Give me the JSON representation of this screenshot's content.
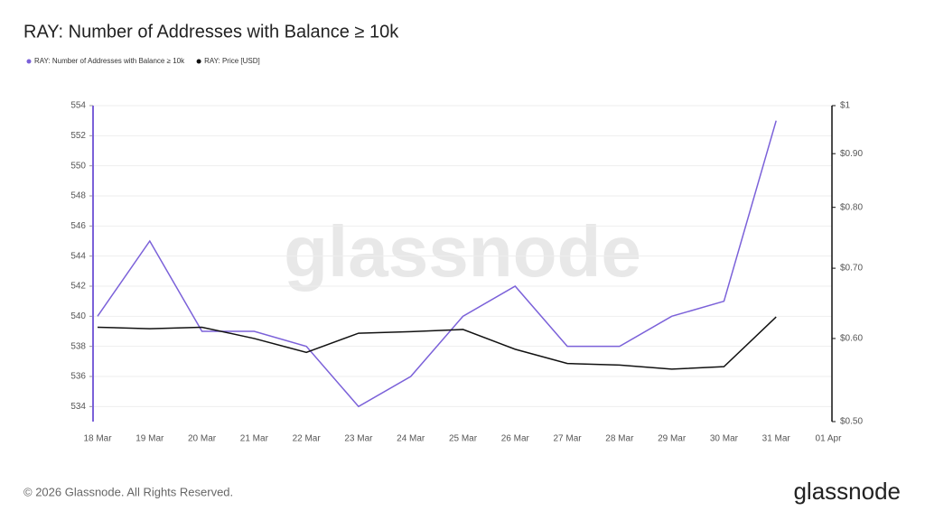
{
  "chart_data": {
    "type": "line",
    "title": "RAY: Number of Addresses with Balance ≥ 10k",
    "watermark": "glassnode",
    "footer": "© 2026 Glassnode. All Rights Reserved.",
    "logo": "glassnode",
    "categories": [
      "18 Mar",
      "19 Mar",
      "20 Mar",
      "21 Mar",
      "22 Mar",
      "23 Mar",
      "24 Mar",
      "25 Mar",
      "26 Mar",
      "27 Mar",
      "28 Mar",
      "29 Mar",
      "30 Mar",
      "31 Mar",
      "01 Apr"
    ],
    "series": [
      {
        "name": "RAY: Number of Addresses with Balance ≥ 10k",
        "color": "#7b61d9",
        "values": [
          540,
          545,
          539,
          539,
          538,
          534,
          536,
          540,
          542,
          538,
          538,
          540,
          541,
          553,
          null
        ]
      },
      {
        "name": "RAY: Price [USD]",
        "color": "#111111",
        "axis": "y2",
        "values": [
          0.615,
          0.613,
          0.615,
          0.6,
          0.582,
          0.607,
          0.609,
          0.612,
          0.586,
          0.568,
          0.566,
          0.561,
          0.564,
          0.629,
          null
        ]
      }
    ],
    "ylim": [
      533,
      554
    ],
    "yticks": [
      534,
      536,
      538,
      540,
      542,
      544,
      546,
      548,
      550,
      552,
      554
    ],
    "y2lim": [
      0.5,
      1
    ],
    "y2_log": true,
    "y2ticks": [
      {
        "value": 0.5,
        "label": "$0.50"
      },
      {
        "value": 0.6,
        "label": "$0.60"
      },
      {
        "value": 0.7,
        "label": "$0.70"
      },
      {
        "value": 0.8,
        "label": "$0.80"
      },
      {
        "value": 0.9,
        "label": "$0.90"
      },
      {
        "value": 1,
        "label": "$1"
      }
    ],
    "grid": true
  }
}
